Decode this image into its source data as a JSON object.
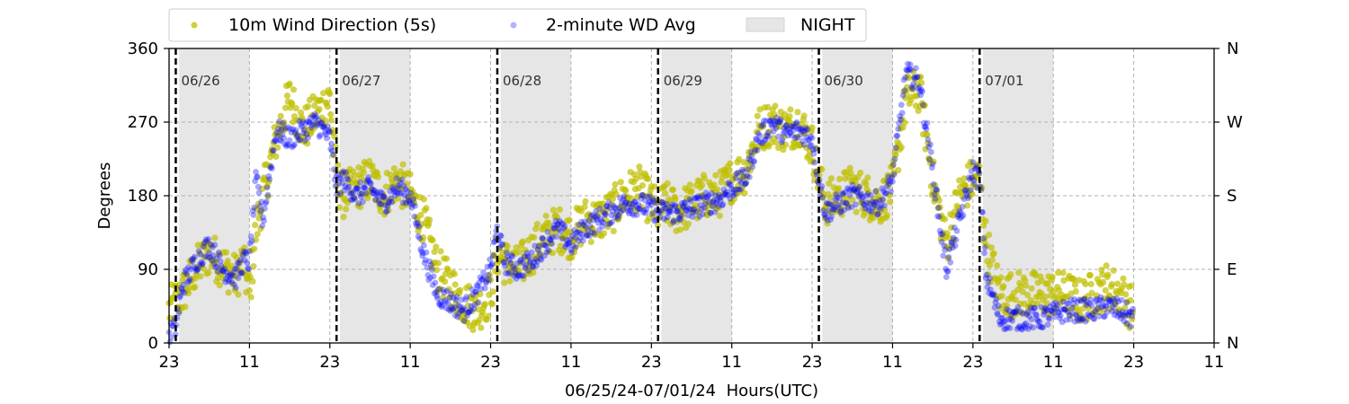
{
  "chart_data": {
    "type": "scatter",
    "xlabel": "06/25/24-07/01/24  Hours(UTC)",
    "ylabel": "Degrees",
    "x_range_hours": [
      0,
      156
    ],
    "ylim": [
      0,
      360
    ],
    "x_tick_hours": [
      0,
      12,
      24,
      36,
      48,
      60,
      72,
      84,
      96,
      108,
      120,
      132,
      144,
      156
    ],
    "x_tick_labels": [
      "23",
      "11",
      "23",
      "11",
      "23",
      "11",
      "23",
      "11",
      "23",
      "11",
      "23",
      "11",
      "23",
      "11"
    ],
    "y_ticks": [
      0,
      90,
      180,
      270,
      360
    ],
    "y_tick_labels": [
      "0",
      "90",
      "180",
      "270",
      "360"
    ],
    "right_axis_labels": [
      "N",
      "E",
      "S",
      "W",
      "N"
    ],
    "grid": true,
    "legend_position": "top",
    "legend": [
      {
        "label": "10m Wind Direction (5s)",
        "kind": "dot",
        "color": "#bfbf00"
      },
      {
        "label": "2-minute WD Avg",
        "kind": "dot",
        "color": "#0000ff"
      },
      {
        "label": "NIGHT",
        "kind": "patch",
        "color": "#e6e6e6"
      }
    ],
    "day_markers": [
      {
        "hour": 1,
        "label": "06/26"
      },
      {
        "hour": 25,
        "label": "06/27"
      },
      {
        "hour": 49,
        "label": "06/28"
      },
      {
        "hour": 73,
        "label": "06/29"
      },
      {
        "hour": 97,
        "label": "06/30"
      },
      {
        "hour": 121,
        "label": "07/01"
      }
    ],
    "night_spans_hours": [
      [
        1.5,
        12
      ],
      [
        25.5,
        36
      ],
      [
        49.5,
        60
      ],
      [
        73.5,
        84
      ],
      [
        97.5,
        108
      ],
      [
        121.5,
        132
      ]
    ],
    "series": [
      {
        "name": "10m Wind Direction (5s)",
        "color": "#bfbf00",
        "spread": 28,
        "values": [
          [
            0,
            40
          ],
          [
            2,
            60
          ],
          [
            4,
            90
          ],
          [
            6,
            110
          ],
          [
            8,
            95
          ],
          [
            10,
            80
          ],
          [
            11,
            100
          ],
          [
            12,
            60
          ],
          [
            13,
            140
          ],
          [
            14,
            180
          ],
          [
            16,
            250
          ],
          [
            18,
            300
          ],
          [
            20,
            260
          ],
          [
            22,
            280
          ],
          [
            24,
            300
          ],
          [
            25,
            200
          ],
          [
            26,
            180
          ],
          [
            28,
            190
          ],
          [
            30,
            200
          ],
          [
            32,
            180
          ],
          [
            34,
            200
          ],
          [
            36,
            180
          ],
          [
            38,
            150
          ],
          [
            40,
            90
          ],
          [
            42,
            70
          ],
          [
            44,
            50
          ],
          [
            46,
            40
          ],
          [
            48,
            60
          ],
          [
            49,
            110
          ],
          [
            50,
            100
          ],
          [
            52,
            90
          ],
          [
            54,
            110
          ],
          [
            56,
            130
          ],
          [
            58,
            140
          ],
          [
            60,
            130
          ],
          [
            62,
            150
          ],
          [
            64,
            150
          ],
          [
            66,
            160
          ],
          [
            68,
            180
          ],
          [
            70,
            190
          ],
          [
            72,
            170
          ],
          [
            73,
            160
          ],
          [
            74,
            170
          ],
          [
            76,
            160
          ],
          [
            78,
            170
          ],
          [
            80,
            180
          ],
          [
            82,
            180
          ],
          [
            84,
            200
          ],
          [
            86,
            210
          ],
          [
            88,
            260
          ],
          [
            90,
            270
          ],
          [
            92,
            260
          ],
          [
            94,
            270
          ],
          [
            96,
            240
          ],
          [
            97,
            200
          ],
          [
            98,
            170
          ],
          [
            100,
            180
          ],
          [
            102,
            190
          ],
          [
            104,
            180
          ],
          [
            106,
            170
          ],
          [
            108,
            190
          ],
          [
            110,
            300
          ],
          [
            112,
            310
          ],
          [
            114,
            200
          ],
          [
            116,
            120
          ],
          [
            118,
            180
          ],
          [
            120,
            200
          ],
          [
            121,
            200
          ],
          [
            122,
            120
          ],
          [
            124,
            60
          ],
          [
            126,
            60
          ],
          [
            128,
            60
          ],
          [
            130,
            60
          ],
          [
            132,
            60
          ],
          [
            134,
            60
          ],
          [
            136,
            50
          ],
          [
            138,
            60
          ],
          [
            140,
            70
          ],
          [
            142,
            60
          ],
          [
            144,
            40
          ]
        ]
      },
      {
        "name": "2-minute WD Avg",
        "color": "#0000ff",
        "spread": 14,
        "values": [
          [
            0,
            10
          ],
          [
            1,
            20
          ],
          [
            2,
            70
          ],
          [
            4,
            100
          ],
          [
            6,
            120
          ],
          [
            8,
            90
          ],
          [
            10,
            80
          ],
          [
            11,
            100
          ],
          [
            12,
            100
          ],
          [
            13,
            200
          ],
          [
            14,
            150
          ],
          [
            16,
            260
          ],
          [
            18,
            250
          ],
          [
            20,
            260
          ],
          [
            22,
            270
          ],
          [
            24,
            250
          ],
          [
            25,
            190
          ],
          [
            26,
            200
          ],
          [
            28,
            180
          ],
          [
            30,
            190
          ],
          [
            32,
            170
          ],
          [
            34,
            190
          ],
          [
            36,
            180
          ],
          [
            38,
            110
          ],
          [
            40,
            60
          ],
          [
            42,
            50
          ],
          [
            44,
            40
          ],
          [
            46,
            60
          ],
          [
            48,
            90
          ],
          [
            49,
            140
          ],
          [
            50,
            100
          ],
          [
            52,
            90
          ],
          [
            54,
            100
          ],
          [
            56,
            120
          ],
          [
            58,
            140
          ],
          [
            60,
            120
          ],
          [
            62,
            140
          ],
          [
            64,
            150
          ],
          [
            66,
            160
          ],
          [
            68,
            170
          ],
          [
            70,
            170
          ],
          [
            72,
            165
          ],
          [
            73,
            160
          ],
          [
            74,
            160
          ],
          [
            76,
            160
          ],
          [
            78,
            165
          ],
          [
            80,
            170
          ],
          [
            82,
            175
          ],
          [
            84,
            190
          ],
          [
            86,
            200
          ],
          [
            88,
            250
          ],
          [
            90,
            270
          ],
          [
            92,
            255
          ],
          [
            94,
            260
          ],
          [
            96,
            250
          ],
          [
            97,
            200
          ],
          [
            98,
            160
          ],
          [
            100,
            170
          ],
          [
            102,
            180
          ],
          [
            104,
            175
          ],
          [
            106,
            170
          ],
          [
            108,
            200
          ],
          [
            110,
            330
          ],
          [
            112,
            320
          ],
          [
            114,
            210
          ],
          [
            116,
            90
          ],
          [
            118,
            150
          ],
          [
            120,
            210
          ],
          [
            121,
            200
          ],
          [
            122,
            80
          ],
          [
            124,
            30
          ],
          [
            126,
            30
          ],
          [
            128,
            30
          ],
          [
            130,
            30
          ],
          [
            132,
            35
          ],
          [
            134,
            40
          ],
          [
            136,
            40
          ],
          [
            138,
            40
          ],
          [
            140,
            45
          ],
          [
            142,
            40
          ],
          [
            144,
            30
          ]
        ]
      }
    ]
  }
}
